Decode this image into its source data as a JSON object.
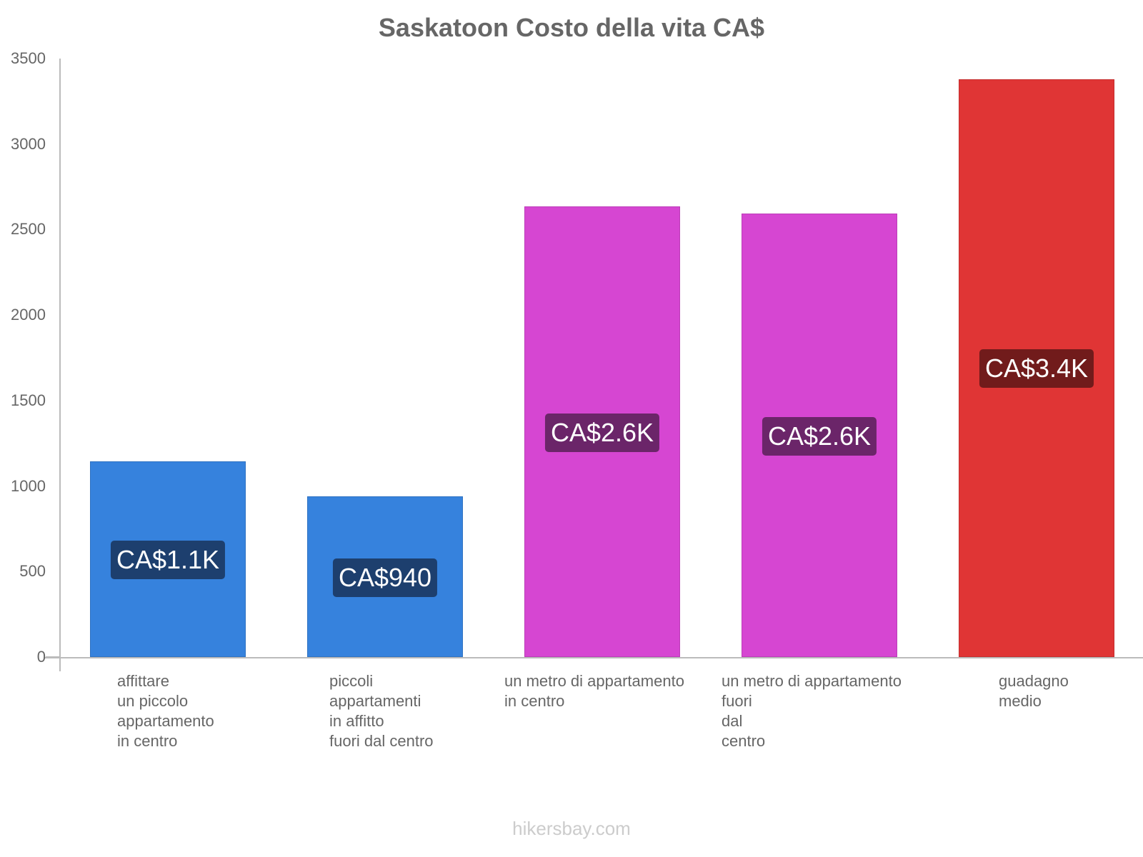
{
  "chart_data": {
    "type": "bar",
    "title": "Saskatoon Costo della vita CA$",
    "xlabel": "",
    "ylabel": "",
    "ylim": [
      0,
      3500
    ],
    "yticks": [
      0,
      500,
      1000,
      1500,
      2000,
      2500,
      3000,
      3500
    ],
    "grid": false,
    "legend": null,
    "categories": [
      "affittare\nun piccolo\nappartamento\nin centro",
      "piccoli\nappartamenti\nin affitto\nfuori dal centro",
      "un metro di appartamento\nin centro",
      "un metro di appartamento\nfuori\ndal\ncentro",
      "guadagno\nmedio"
    ],
    "values": [
      1144,
      938,
      2635,
      2592,
      3380
    ],
    "data_labels": [
      "CA$1.1K",
      "CA$940",
      "CA$2.6K",
      "CA$2.6K",
      "CA$3.4K"
    ],
    "colors": [
      "#3682dd",
      "#3682dd",
      "#d646d2",
      "#d646d2",
      "#e03535"
    ],
    "label_bg_colors": [
      "#1d3f6e",
      "#1d3f6e",
      "#6b2569",
      "#6b2569",
      "#711b1b"
    ]
  },
  "watermark": "hikersbay.com"
}
